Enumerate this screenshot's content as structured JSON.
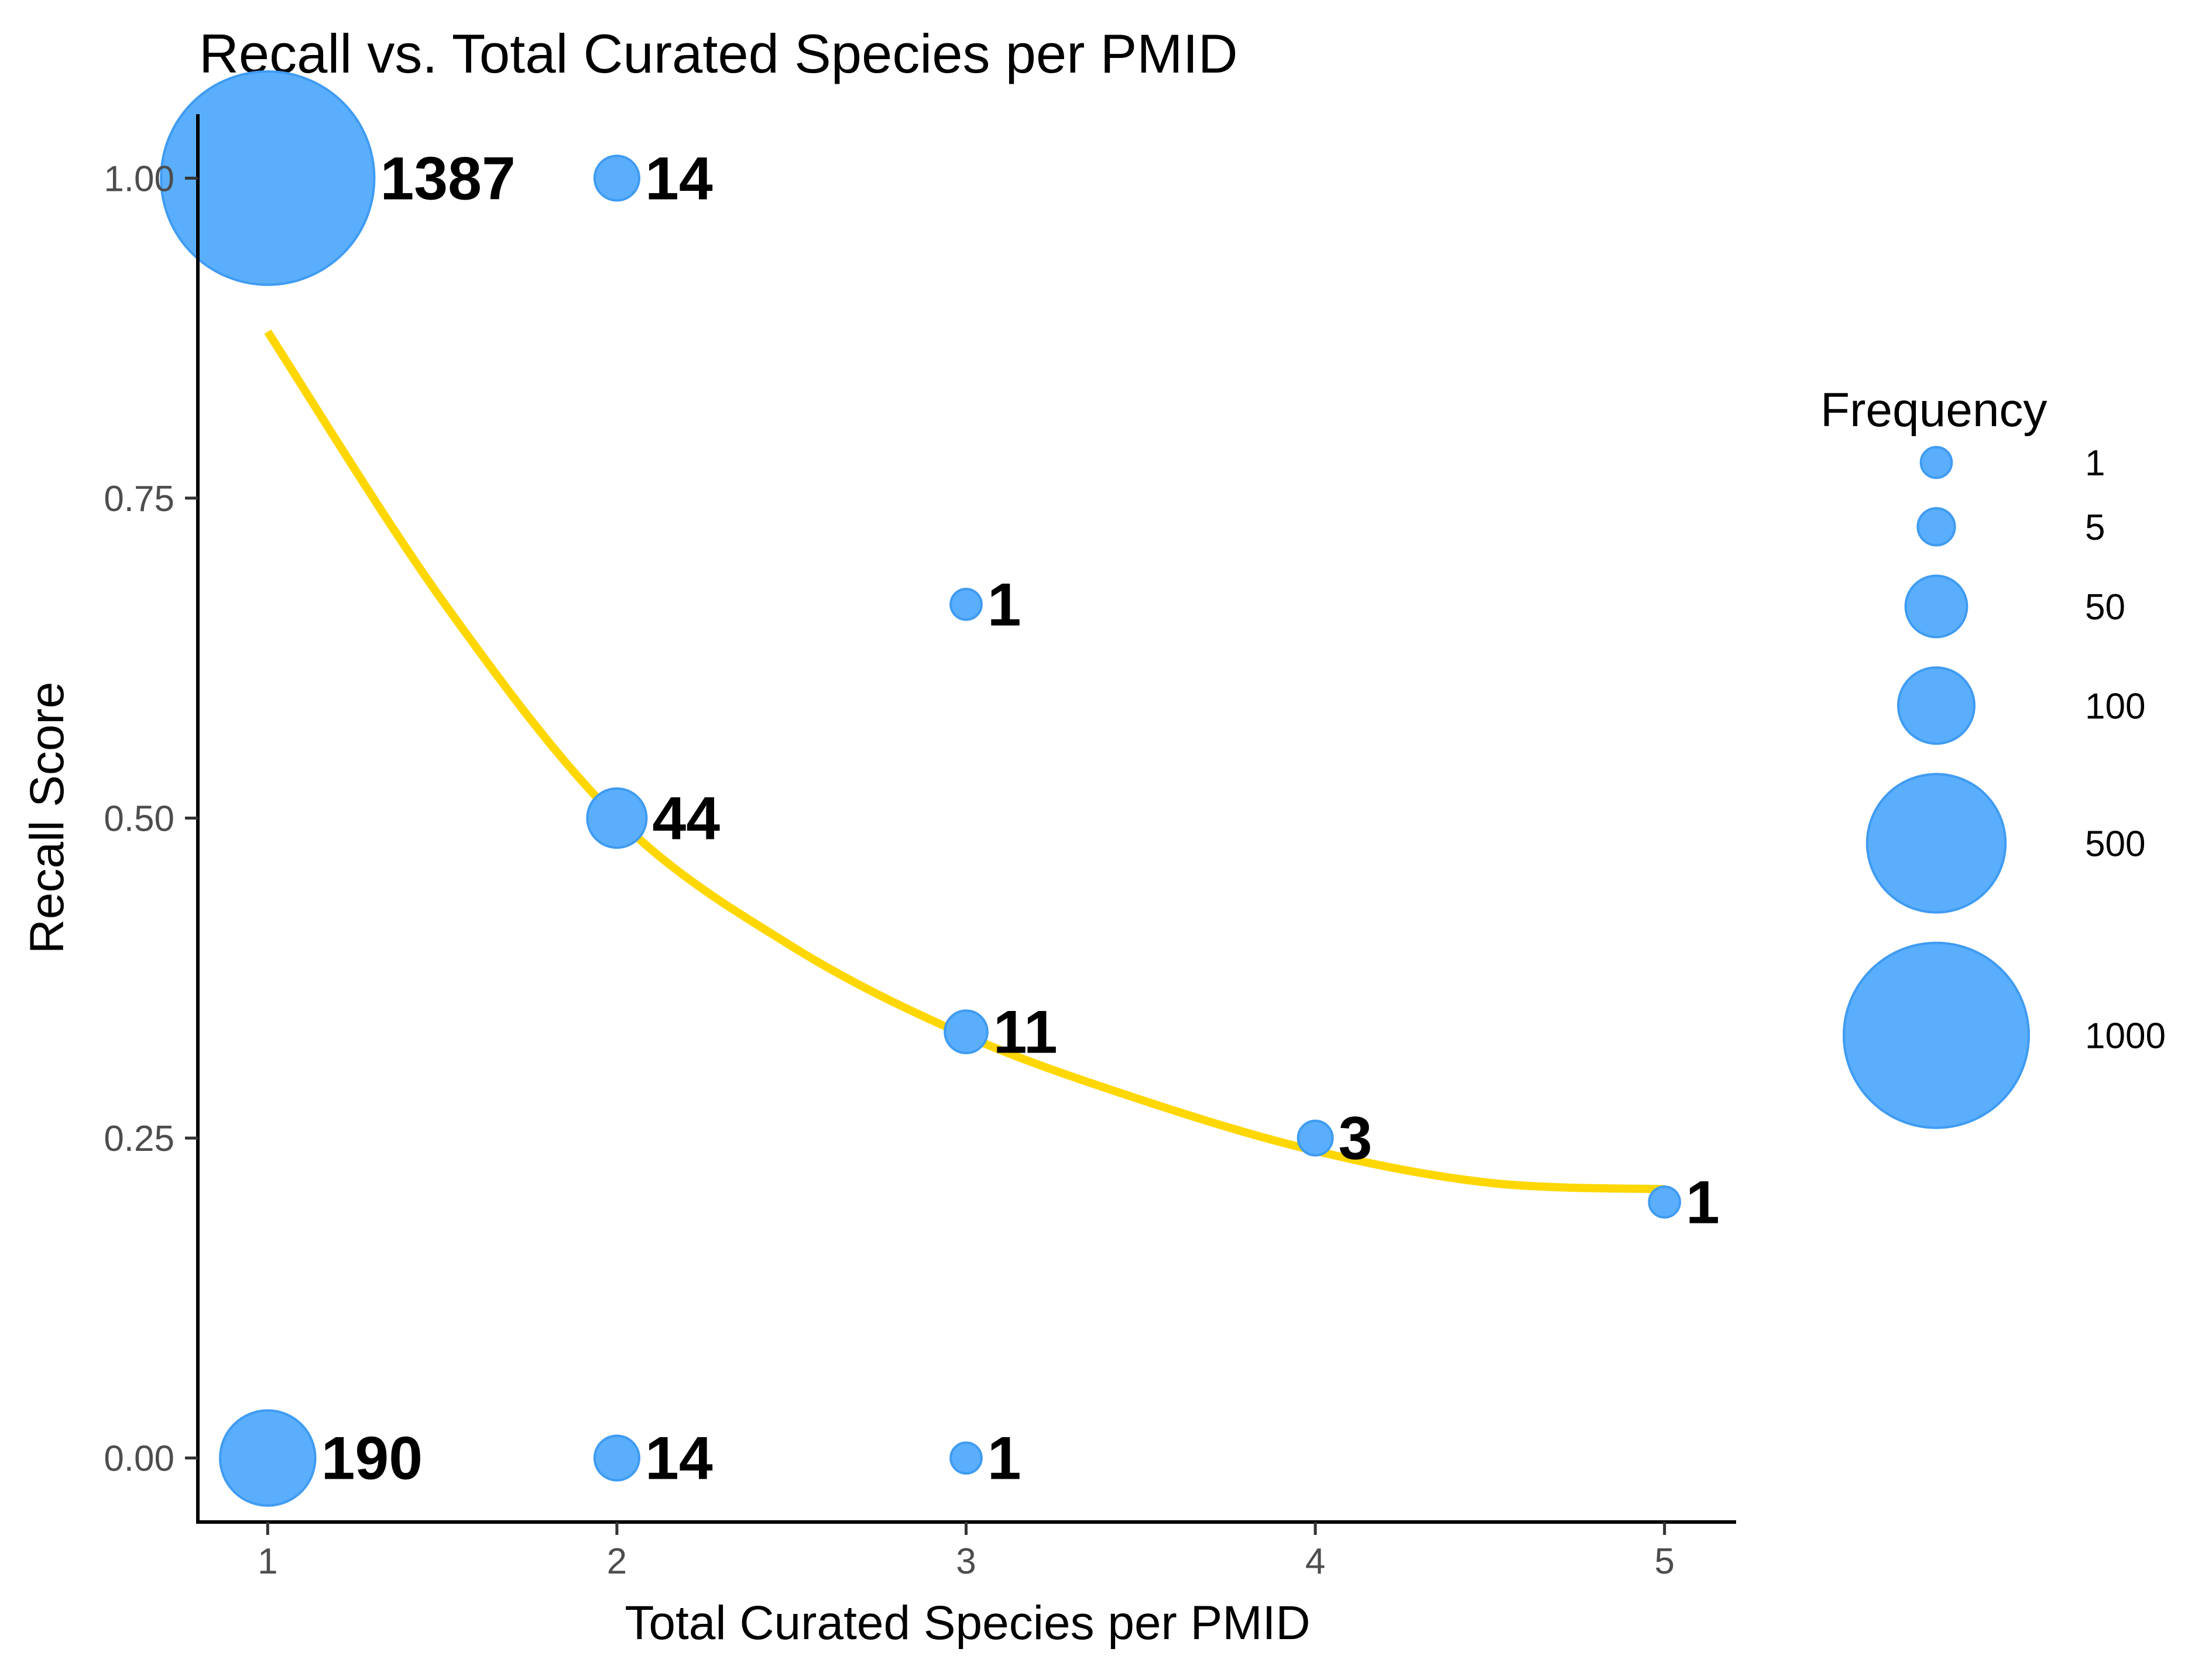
{
  "chart_data": {
    "type": "scatter",
    "title": "Recall vs. Total Curated Species per PMID",
    "xlabel": "Total Curated Species per PMID",
    "ylabel": "Recall Score",
    "xlim": [
      0.8,
      5.2
    ],
    "ylim": [
      -0.05,
      1.05
    ],
    "x_ticks": [
      "1",
      "2",
      "3",
      "4",
      "5"
    ],
    "x_tick_values": [
      1,
      2,
      3,
      4,
      5
    ],
    "y_ticks": [
      "0.00",
      "0.25",
      "0.50",
      "0.75",
      "1.00"
    ],
    "y_tick_values": [
      0,
      0.25,
      0.5,
      0.75,
      1.0
    ],
    "grid": false,
    "point_color": "#5aaefc",
    "point_stroke": "#3f9bf2",
    "trend_color": "#ffd700",
    "points": [
      {
        "x": 1,
        "y": 1.0,
        "frequency": 1387,
        "label": "1387"
      },
      {
        "x": 2,
        "y": 1.0,
        "frequency": 14,
        "label": "14"
      },
      {
        "x": 3,
        "y": 0.667,
        "frequency": 1,
        "label": "1"
      },
      {
        "x": 2,
        "y": 0.5,
        "frequency": 44,
        "label": "44"
      },
      {
        "x": 3,
        "y": 0.333,
        "frequency": 11,
        "label": "11"
      },
      {
        "x": 4,
        "y": 0.25,
        "frequency": 3,
        "label": "3"
      },
      {
        "x": 5,
        "y": 0.2,
        "frequency": 1,
        "label": "1"
      },
      {
        "x": 1,
        "y": 0.0,
        "frequency": 190,
        "label": "190"
      },
      {
        "x": 2,
        "y": 0.0,
        "frequency": 14,
        "label": "14"
      },
      {
        "x": 3,
        "y": 0.0,
        "frequency": 1,
        "label": "1"
      }
    ],
    "trend_line": {
      "x": [
        1,
        1.5,
        2,
        2.5,
        3,
        3.5,
        4,
        4.5,
        5
      ],
      "y": [
        0.88,
        0.67,
        0.5,
        0.4,
        0.33,
        0.28,
        0.24,
        0.215,
        0.21
      ]
    },
    "legend": {
      "title": "Frequency",
      "position": "right",
      "entries": [
        {
          "label": "1",
          "value": 1
        },
        {
          "label": "5",
          "value": 5
        },
        {
          "label": "50",
          "value": 50
        },
        {
          "label": "100",
          "value": 100
        },
        {
          "label": "500",
          "value": 500
        },
        {
          "label": "1000",
          "value": 1000
        }
      ]
    }
  }
}
